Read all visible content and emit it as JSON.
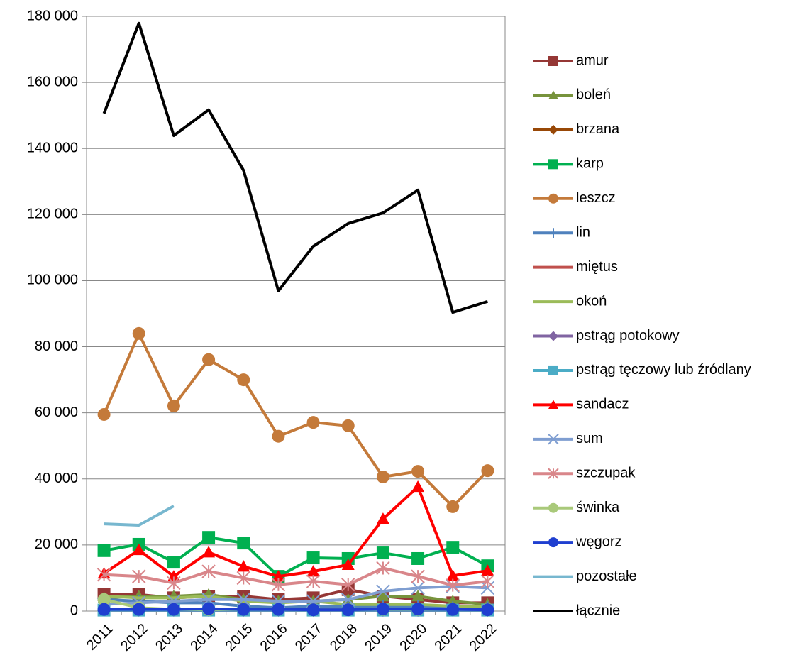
{
  "chart_data": {
    "type": "line",
    "categories": [
      "2011",
      "2012",
      "2013",
      "2014",
      "2015",
      "2016",
      "2017",
      "2018",
      "2019",
      "2020",
      "2021",
      "2022"
    ],
    "ylim": [
      0,
      180000
    ],
    "yticks": [
      {
        "value": 0,
        "label": "0"
      },
      {
        "value": 20000,
        "label": "20 000"
      },
      {
        "value": 40000,
        "label": "40 000"
      },
      {
        "value": 60000,
        "label": "60 000"
      },
      {
        "value": 80000,
        "label": "80 000"
      },
      {
        "value": 100000,
        "label": "100 000"
      },
      {
        "value": 120000,
        "label": "120 000"
      },
      {
        "value": 140000,
        "label": "140 000"
      },
      {
        "value": 160000,
        "label": "160 000"
      },
      {
        "value": 180000,
        "label": "180 000"
      }
    ],
    "grid": true,
    "legend": "right",
    "series": [
      {
        "name": "amur",
        "color": "#953735",
        "marker": "square",
        "values": [
          5000,
          5000,
          4000,
          4500,
          4500,
          3500,
          4000,
          6500,
          4500,
          3500,
          2500,
          2500
        ]
      },
      {
        "name": "boleń",
        "color": "#77933c",
        "marker": "triangle",
        "values": [
          4000,
          4500,
          4500,
          5000,
          3500,
          3000,
          3000,
          3500,
          4500,
          4500,
          3000,
          2000
        ]
      },
      {
        "name": "brzana",
        "color": "#984807",
        "marker": "diamond",
        "values": [
          500,
          500,
          500,
          500,
          500,
          500,
          500,
          500,
          500,
          500,
          500,
          500
        ]
      },
      {
        "name": "karp",
        "color": "#00b050",
        "marker": "square",
        "values": [
          18300,
          20200,
          14800,
          22300,
          20600,
          10500,
          16100,
          15900,
          17600,
          15900,
          19300,
          13700
        ]
      },
      {
        "name": "leszcz",
        "color": "#c47a3a",
        "marker": "circle",
        "values": [
          59500,
          84000,
          62100,
          76100,
          70000,
          52900,
          57100,
          56100,
          40600,
          42300,
          31600,
          42500
        ]
      },
      {
        "name": "lin",
        "color": "#4f81bd",
        "marker": "plus",
        "values": [
          3500,
          3000,
          2500,
          2500,
          1500,
          1000,
          1500,
          1500,
          1500,
          1500,
          1000,
          1000
        ]
      },
      {
        "name": "miętus",
        "color": "#c0504d",
        "marker": "none",
        "values": [
          100,
          100,
          100,
          100,
          100,
          100,
          100,
          100,
          100,
          100,
          100,
          100
        ]
      },
      {
        "name": "okoń",
        "color": "#9bbb59",
        "marker": "none",
        "values": [
          4500,
          4000,
          4000,
          4500,
          3000,
          2500,
          3000,
          2000,
          2000,
          2000,
          1500,
          1500
        ]
      },
      {
        "name": "pstrąg potokowy",
        "color": "#8064a2",
        "marker": "diamond",
        "values": [
          200,
          200,
          200,
          200,
          200,
          200,
          200,
          200,
          200,
          200,
          200,
          200
        ]
      },
      {
        "name": "pstrąg tęczowy lub źródlany",
        "color": "#4bacc6",
        "marker": "square",
        "values": [
          300,
          300,
          300,
          300,
          300,
          300,
          300,
          300,
          300,
          300,
          300,
          300
        ]
      },
      {
        "name": "sandacz",
        "color": "#ff0000",
        "marker": "triangle",
        "values": [
          11400,
          18500,
          10500,
          17800,
          13500,
          10500,
          12000,
          14000,
          27900,
          37600,
          10700,
          12200
        ]
      },
      {
        "name": "sum",
        "color": "#7f9ed1",
        "marker": "x",
        "values": [
          2000,
          2500,
          3000,
          3500,
          3500,
          3000,
          3000,
          3500,
          6000,
          7000,
          7500,
          7000
        ]
      },
      {
        "name": "szczupak",
        "color": "#d9868a",
        "marker": "star",
        "values": [
          11000,
          10500,
          8500,
          12000,
          10000,
          8000,
          9000,
          8000,
          13000,
          10500,
          7800,
          9000
        ]
      },
      {
        "name": "świnka",
        "color": "#a9c97a",
        "marker": "circle",
        "values": [
          3500,
          1000,
          500,
          500,
          500,
          500,
          500,
          500,
          500,
          500,
          500,
          500
        ]
      },
      {
        "name": "węgorz",
        "color": "#1f3fd0",
        "marker": "circle",
        "values": [
          500,
          500,
          500,
          700,
          500,
          500,
          400,
          400,
          600,
          600,
          500,
          400
        ]
      },
      {
        "name": "pozostałe",
        "color": "#77b7cf",
        "marker": "none",
        "values": [
          26400,
          26000,
          31800,
          null,
          null,
          null,
          null,
          null,
          null,
          null,
          null,
          null
        ]
      },
      {
        "name": "łącznie",
        "color": "#000000",
        "marker": "none",
        "values": [
          150600,
          177900,
          143900,
          151700,
          133400,
          96900,
          110400,
          117300,
          120500,
          127400,
          90400,
          93700
        ]
      }
    ]
  }
}
